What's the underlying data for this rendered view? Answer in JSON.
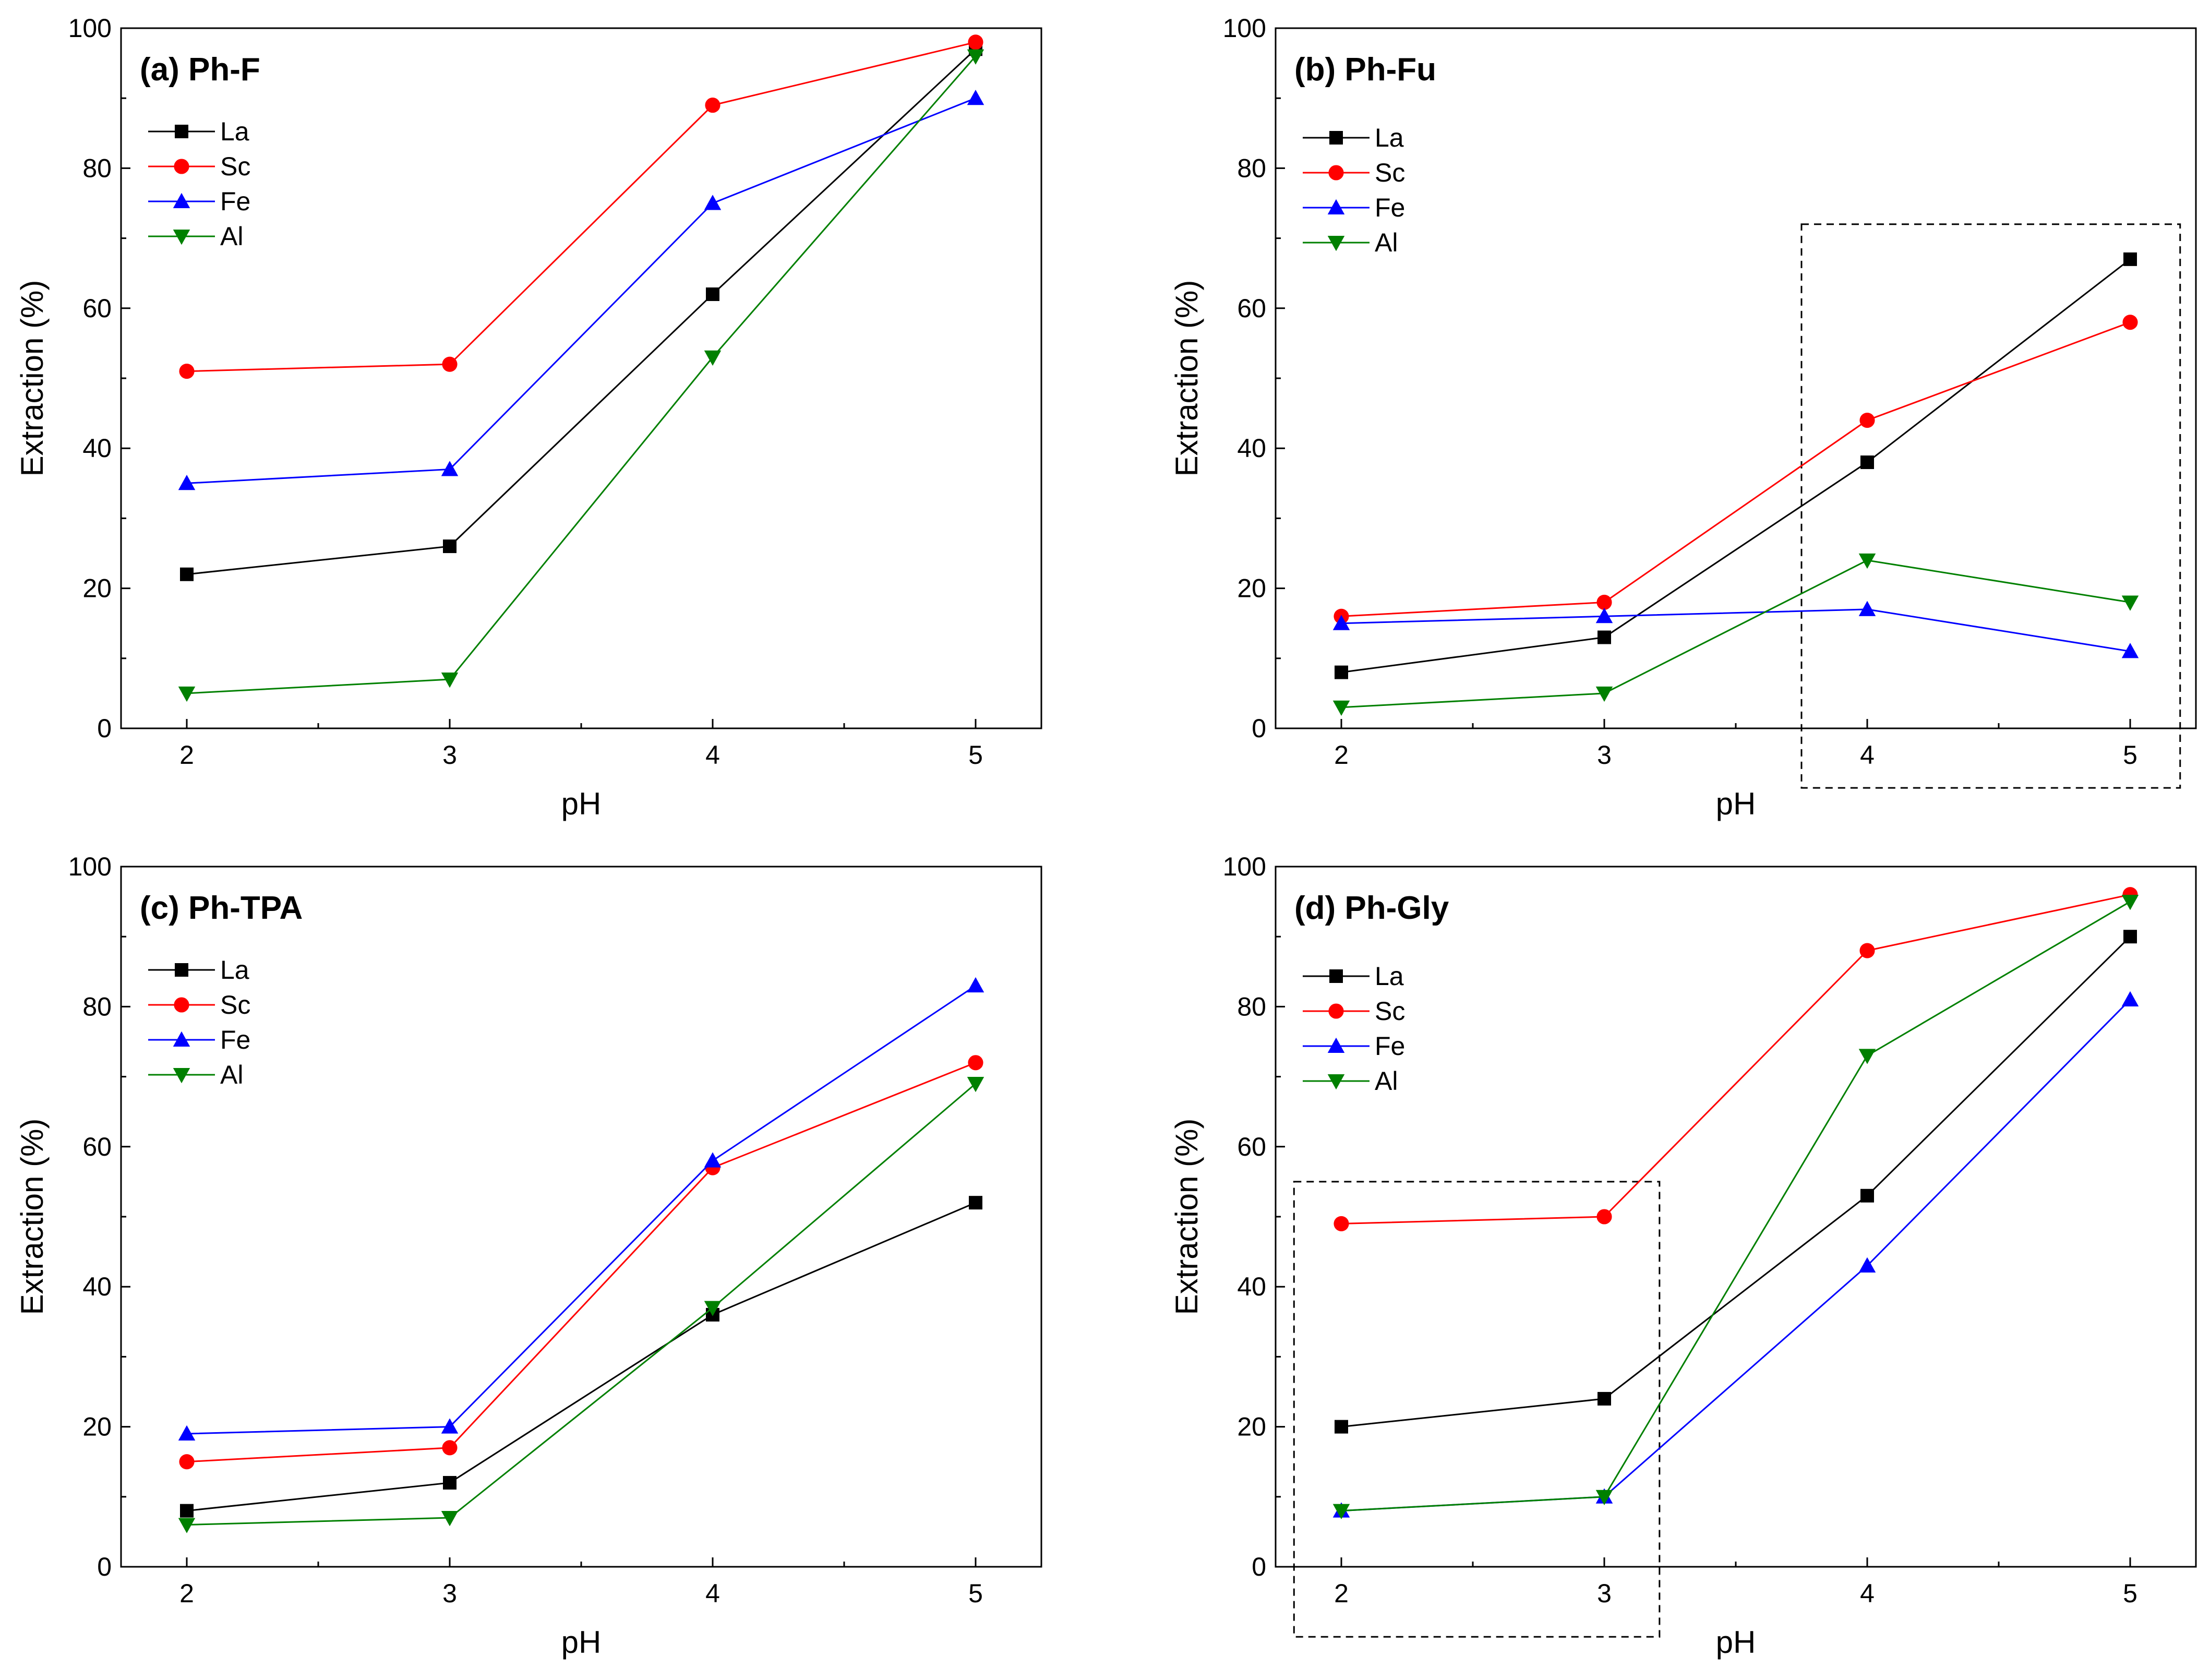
{
  "chart_data": [
    {
      "type": "line",
      "title": "(a) Ph-F",
      "xlabel": "pH",
      "ylabel": "Extraction (%)",
      "x": [
        2,
        3,
        4,
        5
      ],
      "xlim": [
        1.75,
        5.25
      ],
      "ylim": [
        0,
        100
      ],
      "yticks": [
        0,
        20,
        40,
        60,
        80,
        100
      ],
      "legend_position": "upper-left",
      "highlight_box": null,
      "series": [
        {
          "name": "La",
          "color": "#000000",
          "marker": "square",
          "values": [
            22,
            26,
            62,
            97
          ]
        },
        {
          "name": "Sc",
          "color": "#ff0000",
          "marker": "circle",
          "values": [
            51,
            52,
            89,
            98
          ]
        },
        {
          "name": "Fe",
          "color": "#0000ff",
          "marker": "triangle-up",
          "values": [
            35,
            37,
            75,
            90
          ]
        },
        {
          "name": "Al",
          "color": "#008000",
          "marker": "triangle-down",
          "values": [
            5,
            7,
            53,
            96
          ]
        }
      ]
    },
    {
      "type": "line",
      "title": "(b) Ph-Fu",
      "xlabel": "pH",
      "ylabel": "Extraction (%)",
      "x": [
        2,
        3,
        4,
        5
      ],
      "xlim": [
        1.75,
        5.25
      ],
      "ylim": [
        0,
        100
      ],
      "yticks": [
        0,
        20,
        40,
        60,
        80,
        100
      ],
      "legend_position": "upper-left",
      "highlight_box": {
        "x": [
          3.75,
          5.19
        ],
        "y": [
          -8.5,
          72
        ]
      },
      "series": [
        {
          "name": "La",
          "color": "#000000",
          "marker": "square",
          "values": [
            8,
            13,
            38,
            67
          ]
        },
        {
          "name": "Sc",
          "color": "#ff0000",
          "marker": "circle",
          "values": [
            16,
            18,
            44,
            58
          ]
        },
        {
          "name": "Fe",
          "color": "#0000ff",
          "marker": "triangle-up",
          "values": [
            15,
            16,
            17,
            11
          ]
        },
        {
          "name": "Al",
          "color": "#008000",
          "marker": "triangle-down",
          "values": [
            3,
            5,
            24,
            18
          ]
        }
      ]
    },
    {
      "type": "line",
      "title": "(c) Ph-TPA",
      "xlabel": "pH",
      "ylabel": "Extraction (%)",
      "x": [
        2,
        3,
        4,
        5
      ],
      "xlim": [
        1.75,
        5.25
      ],
      "ylim": [
        0,
        100
      ],
      "yticks": [
        0,
        20,
        40,
        60,
        80,
        100
      ],
      "legend_position": "upper-left",
      "highlight_box": null,
      "series": [
        {
          "name": "La",
          "color": "#000000",
          "marker": "square",
          "values": [
            8,
            12,
            36,
            52
          ]
        },
        {
          "name": "Sc",
          "color": "#ff0000",
          "marker": "circle",
          "values": [
            15,
            17,
            57,
            72
          ]
        },
        {
          "name": "Fe",
          "color": "#0000ff",
          "marker": "triangle-up",
          "values": [
            19,
            20,
            58,
            83
          ]
        },
        {
          "name": "Al",
          "color": "#008000",
          "marker": "triangle-down",
          "values": [
            6,
            7,
            37,
            69
          ]
        }
      ]
    },
    {
      "type": "line",
      "title": "(d) Ph-Gly",
      "xlabel": "pH",
      "ylabel": "Extraction (%)",
      "x": [
        2,
        3,
        4,
        5
      ],
      "xlim": [
        1.75,
        5.25
      ],
      "ylim": [
        0,
        100
      ],
      "yticks": [
        0,
        20,
        40,
        60,
        80,
        100
      ],
      "legend_position": "upper-left",
      "highlight_box": {
        "x": [
          1.82,
          3.21
        ],
        "y": [
          -10,
          55
        ]
      },
      "series": [
        {
          "name": "La",
          "color": "#000000",
          "marker": "square",
          "values": [
            20,
            24,
            53,
            90
          ]
        },
        {
          "name": "Sc",
          "color": "#ff0000",
          "marker": "circle",
          "values": [
            49,
            50,
            88,
            96
          ]
        },
        {
          "name": "Fe",
          "color": "#0000ff",
          "marker": "triangle-up",
          "values": [
            8,
            10,
            43,
            81
          ]
        },
        {
          "name": "Al",
          "color": "#008000",
          "marker": "triangle-down",
          "values": [
            8,
            10,
            73,
            95
          ]
        }
      ]
    }
  ]
}
